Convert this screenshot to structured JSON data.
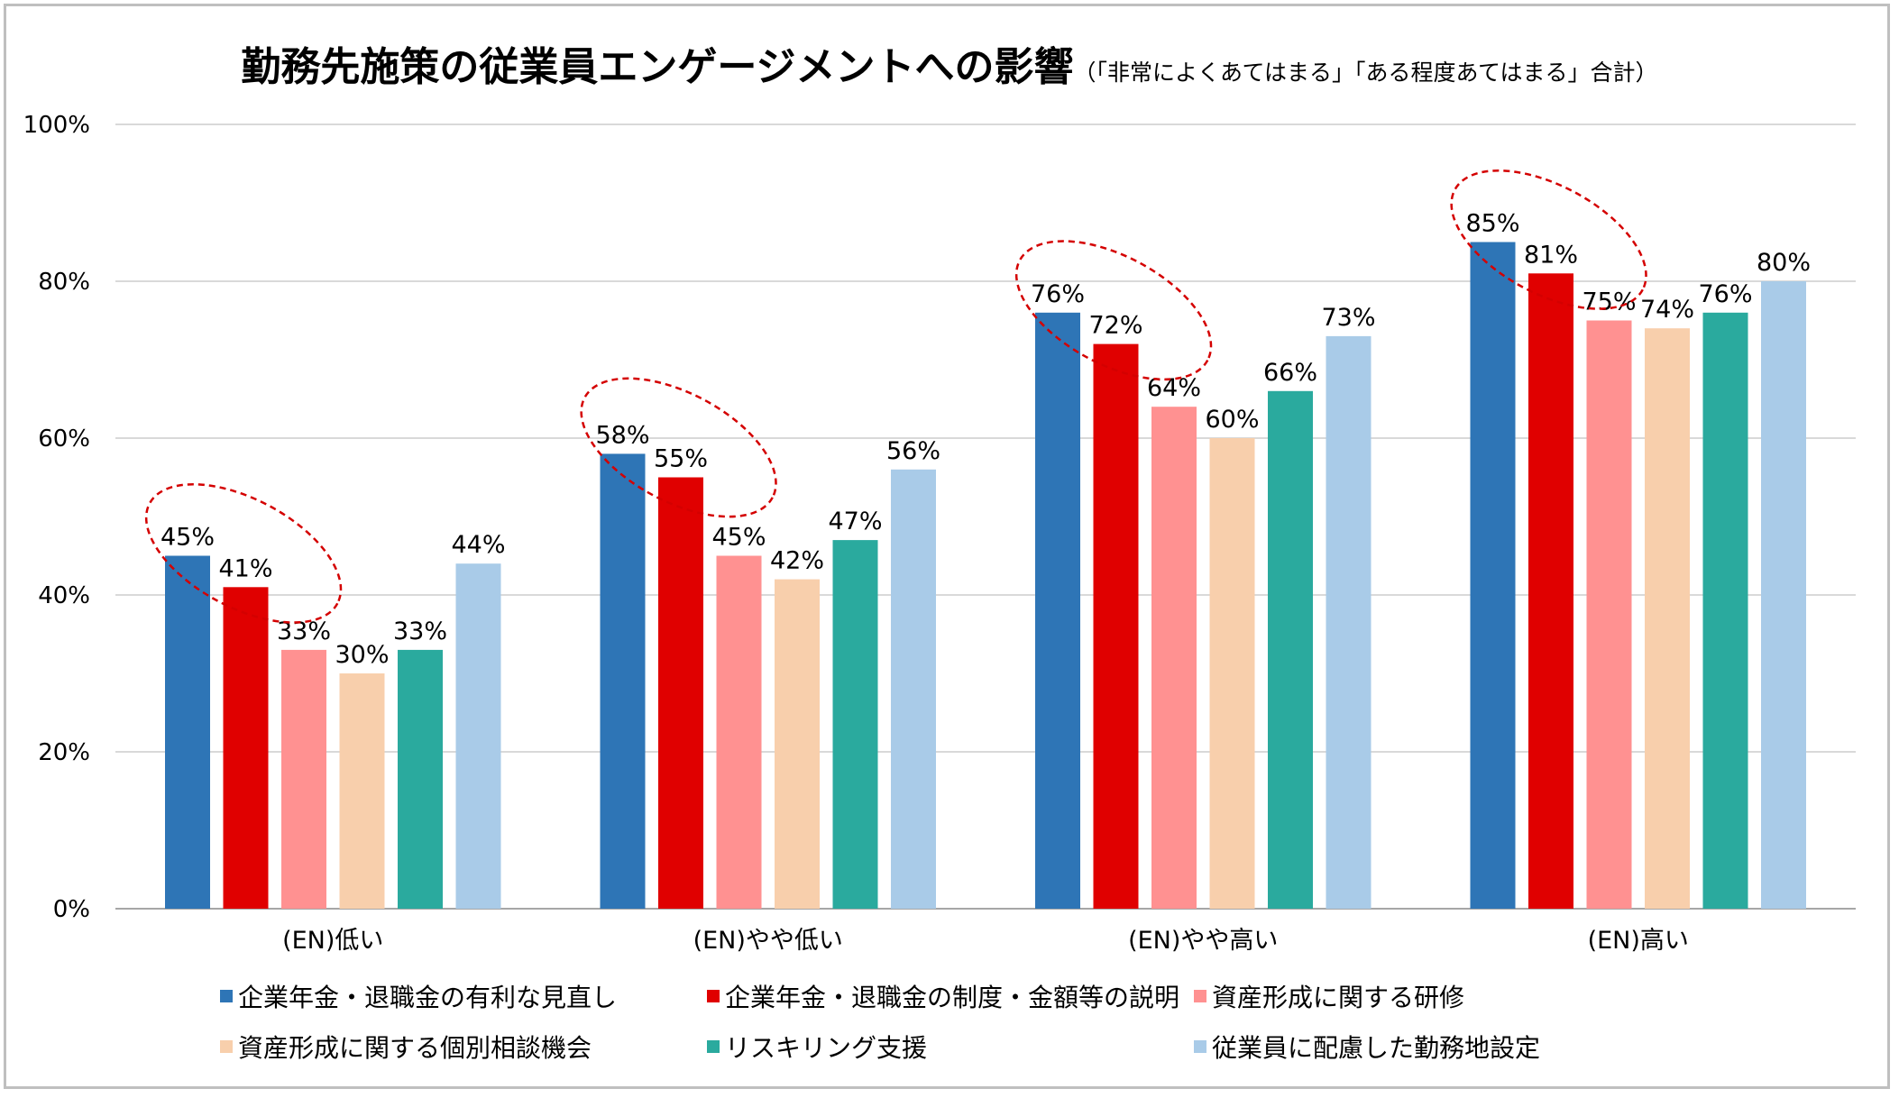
{
  "title": {
    "main": "勤務先施策の従業員エンゲージメントへの影響",
    "sub": "（「非常によくあてはまる」「ある程度あてはまる」合計）"
  },
  "chart_data": {
    "type": "bar",
    "title": "勤務先施策の従業員エンゲージメントへの影響（「非常によくあてはまる」「ある程度あてはまる」合計）",
    "xlabel": "",
    "ylabel": "",
    "ylim": [
      0,
      100
    ],
    "yticks": [
      "0%",
      "20%",
      "40%",
      "60%",
      "80%",
      "100%"
    ],
    "grid": true,
    "legend_position": "bottom",
    "categories": [
      "(EN)低い",
      "(EN)やや低い",
      "(EN)やや高い",
      "(EN)高い"
    ],
    "series": [
      {
        "name": "企業年金・退職金の有利な見直し",
        "color": "#2e75b6",
        "values": [
          45,
          58,
          76,
          85
        ],
        "labels": [
          "45%",
          "58%",
          "76%",
          "85%"
        ]
      },
      {
        "name": "企業年金・退職金の制度・金額等の説明",
        "color": "#e00000",
        "values": [
          41,
          55,
          72,
          81
        ],
        "labels": [
          "41%",
          "55%",
          "72%",
          "81%"
        ]
      },
      {
        "name": "資産形成に関する研修",
        "color": "#ff9191",
        "values": [
          33,
          45,
          64,
          75
        ],
        "labels": [
          "33%",
          "45%",
          "64%",
          "75%"
        ]
      },
      {
        "name": "資産形成に関する個別相談機会",
        "color": "#f8cfac",
        "values": [
          30,
          42,
          60,
          74
        ],
        "labels": [
          "30%",
          "42%",
          "60%",
          "74%"
        ]
      },
      {
        "name": "リスキリング支援",
        "color": "#2aaa9e",
        "values": [
          33,
          47,
          66,
          76
        ],
        "labels": [
          "33%",
          "47%",
          "66%",
          "76%"
        ]
      },
      {
        "name": "従業員に配慮した勤務地設定",
        "color": "#a9cbe8",
        "values": [
          44,
          56,
          73,
          80
        ],
        "labels": [
          "44%",
          "56%",
          "73%",
          "80%"
        ]
      }
    ],
    "annotations": "red dashed ellipses highlight the first two series in each category"
  }
}
